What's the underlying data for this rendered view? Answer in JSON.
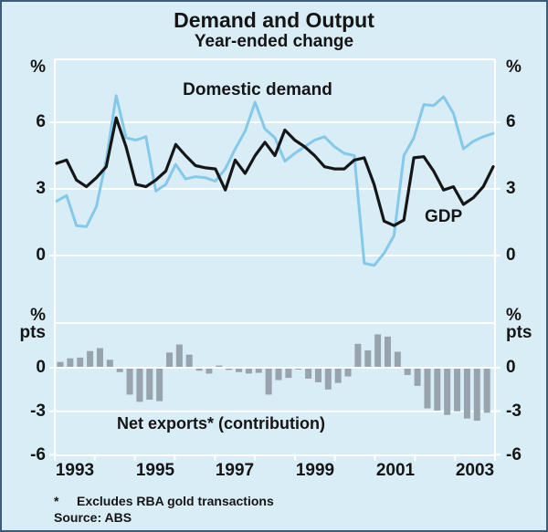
{
  "title": "Demand and Output",
  "subtitle": "Year-ended change",
  "top_panel": {
    "unit": "%",
    "ytick_labels": [
      "6",
      "3",
      "0"
    ]
  },
  "bottom_panel": {
    "unit_line1": "%",
    "unit_line2": "pts",
    "ytick_labels": [
      "0",
      "-3",
      "-6"
    ]
  },
  "labels": {
    "domestic_demand": "Domestic demand",
    "gdp": "GDP",
    "net_exports": "Net exports* (contribution)"
  },
  "x_axis": {
    "year_labels": [
      "1993",
      "1995",
      "1997",
      "1999",
      "2001",
      "2003"
    ]
  },
  "footnote": {
    "marker": "*",
    "text": "Excludes RBA gold transactions"
  },
  "source": "Source: ABS",
  "colors": {
    "background": "#d9edf7",
    "frame_border": "#3b5d79",
    "grid": "#ffffff",
    "gdp_line": "#161616",
    "demand_line": "#85c9ea",
    "bars": "#97a3ad",
    "text": "#151515"
  },
  "chart_data": [
    {
      "type": "line",
      "panel": "top",
      "title": "Demand and Output - Year-ended change",
      "ylabel": "%",
      "ylim": [
        -3,
        8.8
      ],
      "yticks": [
        0,
        3,
        6
      ],
      "grid": true,
      "x_quarters": [
        "1992 Q4",
        "1993 Q1",
        "1993 Q2",
        "1993 Q3",
        "1993 Q4",
        "1994 Q1",
        "1994 Q2",
        "1994 Q3",
        "1994 Q4",
        "1995 Q1",
        "1995 Q2",
        "1995 Q3",
        "1995 Q4",
        "1996 Q1",
        "1996 Q2",
        "1996 Q3",
        "1996 Q4",
        "1997 Q1",
        "1997 Q2",
        "1997 Q3",
        "1997 Q4",
        "1998 Q1",
        "1998 Q2",
        "1998 Q3",
        "1998 Q4",
        "1999 Q1",
        "1999 Q2",
        "1999 Q3",
        "1999 Q4",
        "2000 Q1",
        "2000 Q2",
        "2000 Q3",
        "2000 Q4",
        "2001 Q1",
        "2001 Q2",
        "2001 Q3",
        "2001 Q4",
        "2002 Q1",
        "2002 Q2",
        "2002 Q3",
        "2002 Q4",
        "2003 Q1",
        "2003 Q2",
        "2003 Q3",
        "2003 Q4"
      ],
      "series": [
        {
          "name": "Domestic demand",
          "values": [
            2.45,
            2.7,
            1.35,
            1.3,
            2.2,
            4.3,
            7.2,
            5.3,
            5.2,
            5.35,
            2.9,
            3.2,
            4.1,
            3.45,
            3.55,
            3.5,
            3.35,
            3.9,
            4.8,
            5.6,
            6.9,
            5.7,
            5.3,
            4.25,
            4.6,
            4.9,
            5.2,
            5.35,
            4.9,
            4.6,
            4.5,
            -0.35,
            -0.45,
            0.1,
            0.9,
            4.5,
            5.3,
            6.8,
            6.75,
            7.15,
            6.4,
            4.8,
            5.15,
            5.35,
            5.5
          ]
        },
        {
          "name": "GDP",
          "values": [
            4.15,
            4.3,
            3.4,
            3.1,
            3.5,
            4.0,
            6.2,
            4.9,
            3.2,
            3.1,
            3.4,
            3.8,
            5.0,
            4.5,
            4.05,
            3.95,
            3.9,
            2.95,
            4.3,
            3.7,
            4.5,
            5.1,
            4.5,
            5.65,
            5.2,
            4.9,
            4.5,
            4.0,
            3.9,
            3.9,
            4.3,
            4.4,
            3.2,
            1.55,
            1.35,
            1.6,
            4.4,
            4.45,
            3.8,
            2.95,
            3.1,
            2.3,
            2.6,
            3.1,
            4.0
          ]
        }
      ],
      "xtick_year_labels": [
        "1993",
        "1995",
        "1997",
        "1999",
        "2001",
        "2003"
      ],
      "legend": "in-plot text labels"
    },
    {
      "type": "bar",
      "panel": "bottom",
      "title": "Net exports* (contribution)",
      "ylabel": "% pts",
      "ylim": [
        -6,
        3.1
      ],
      "yticks": [
        0,
        -3,
        -6
      ],
      "grid": true,
      "x_quarters": [
        "1992 Q4",
        "1993 Q1",
        "1993 Q2",
        "1993 Q3",
        "1993 Q4",
        "1994 Q1",
        "1994 Q2",
        "1994 Q3",
        "1994 Q4",
        "1995 Q1",
        "1995 Q2",
        "1995 Q3",
        "1995 Q4",
        "1996 Q1",
        "1996 Q2",
        "1996 Q3",
        "1996 Q4",
        "1997 Q1",
        "1997 Q2",
        "1997 Q3",
        "1997 Q4",
        "1998 Q1",
        "1998 Q2",
        "1998 Q3",
        "1998 Q4",
        "1999 Q1",
        "1999 Q2",
        "1999 Q3",
        "1999 Q4",
        "2000 Q1",
        "2000 Q2",
        "2000 Q3",
        "2000 Q4",
        "2001 Q1",
        "2001 Q2",
        "2001 Q3",
        "2001 Q4",
        "2002 Q1",
        "2002 Q2",
        "2002 Q3",
        "2002 Q4",
        "2003 Q1",
        "2003 Q2",
        "2003 Q3",
        "2003 Q4"
      ],
      "values": [
        0.4,
        0.65,
        0.7,
        1.15,
        1.35,
        0.55,
        -0.3,
        -1.85,
        -2.35,
        -2.2,
        -2.3,
        1.05,
        1.6,
        0.9,
        -0.2,
        -0.4,
        0.15,
        -0.15,
        -0.3,
        -0.4,
        -0.35,
        -1.85,
        -0.85,
        -0.7,
        -0.05,
        -0.75,
        -1.0,
        -1.5,
        -1.05,
        -0.6,
        1.65,
        1.2,
        2.3,
        2.15,
        1.1,
        -0.5,
        -1.25,
        -2.8,
        -2.95,
        -3.25,
        -3.0,
        -3.5,
        -3.65,
        -3.1,
        null
      ]
    }
  ]
}
